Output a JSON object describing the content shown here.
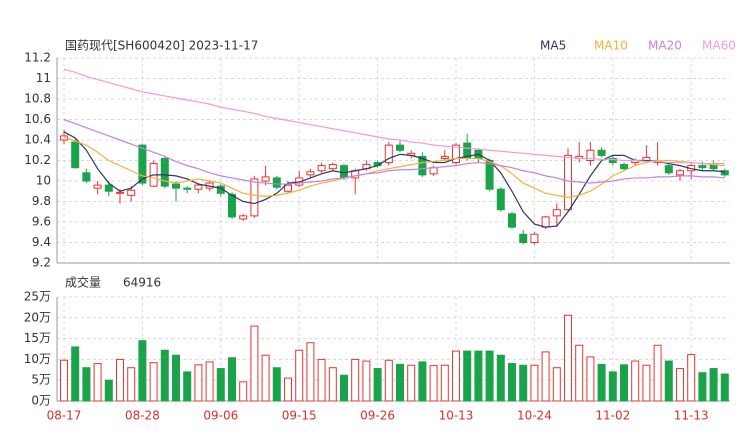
{
  "chart_data": [
    {
      "type": "candlestick",
      "title": "国药现代[SH600420] 2023-11-17",
      "up_color": "#e8352e",
      "down_color": "#1aa34a",
      "open": [
        10.4,
        10.38,
        10.08,
        9.93,
        9.96,
        9.88,
        9.86,
        10.35,
        9.95,
        10.22,
        9.97,
        9.93,
        9.92,
        9.93,
        9.95,
        9.87,
        9.63,
        9.66,
        10.0,
        10.03,
        9.9,
        9.96,
        10.06,
        10.1,
        10.12,
        10.15,
        10.03,
        10.12,
        10.18,
        10.18,
        10.35,
        10.25,
        10.24,
        10.07,
        10.22,
        10.18,
        10.37,
        10.3,
        10.2,
        9.92,
        9.68,
        9.48,
        9.4,
        9.55,
        9.66,
        9.72,
        10.22,
        10.2,
        10.3,
        10.22,
        10.16,
        10.18,
        10.2,
        10.18,
        10.15,
        10.06,
        10.1,
        10.15,
        10.16,
        10.1
      ],
      "high": [
        10.5,
        10.42,
        10.12,
        10.0,
        10.0,
        9.92,
        9.95,
        10.36,
        10.2,
        10.24,
        10.0,
        9.95,
        9.98,
        10.0,
        9.97,
        9.89,
        9.68,
        10.05,
        10.15,
        10.05,
        10.0,
        10.1,
        10.12,
        10.18,
        10.18,
        10.17,
        10.12,
        10.2,
        10.2,
        10.38,
        10.4,
        10.3,
        10.28,
        10.15,
        10.3,
        10.37,
        10.46,
        10.32,
        10.22,
        9.94,
        9.7,
        9.52,
        9.5,
        9.66,
        9.78,
        10.32,
        10.38,
        10.38,
        10.33,
        10.25,
        10.18,
        10.22,
        10.35,
        10.38,
        10.17,
        10.12,
        10.17,
        10.19,
        10.2,
        10.12
      ],
      "low": [
        10.36,
        10.12,
        9.98,
        9.87,
        9.85,
        9.78,
        9.8,
        9.96,
        9.94,
        9.93,
        9.8,
        9.88,
        9.88,
        9.9,
        9.85,
        9.63,
        9.61,
        9.64,
        9.96,
        9.92,
        9.88,
        9.94,
        10.03,
        10.08,
        10.1,
        10.01,
        9.87,
        10.1,
        10.13,
        10.15,
        10.28,
        10.22,
        10.04,
        10.05,
        10.2,
        10.16,
        10.2,
        10.18,
        9.9,
        9.7,
        9.53,
        9.38,
        9.38,
        9.53,
        9.55,
        9.7,
        10.18,
        10.15,
        10.23,
        10.15,
        10.1,
        10.15,
        10.18,
        10.15,
        10.06,
        10.0,
        10.02,
        10.1,
        10.1,
        10.04
      ],
      "close": [
        10.44,
        10.13,
        10.0,
        9.96,
        9.9,
        9.89,
        9.91,
        9.98,
        10.17,
        9.95,
        9.93,
        9.92,
        9.96,
        9.98,
        9.88,
        9.65,
        9.66,
        10.02,
        10.04,
        9.94,
        9.96,
        10.03,
        10.09,
        10.15,
        10.16,
        10.03,
        10.1,
        10.16,
        10.15,
        10.35,
        10.3,
        10.27,
        10.06,
        10.13,
        10.24,
        10.35,
        10.22,
        10.22,
        9.92,
        9.72,
        9.55,
        9.4,
        9.48,
        9.65,
        9.72,
        10.25,
        10.24,
        10.3,
        10.25,
        10.18,
        10.12,
        10.2,
        10.23,
        10.2,
        10.08,
        10.1,
        10.15,
        10.13,
        10.12,
        10.06
      ],
      "series": [
        {
          "name": "MA5",
          "color": "#2f3566",
          "values": [
            10.48,
            10.42,
            10.3,
            10.12,
            9.98,
            9.9,
            9.93,
            10.02,
            10.06,
            10.06,
            10.05,
            10.02,
            9.97,
            9.95,
            9.93,
            9.86,
            9.8,
            9.78,
            9.82,
            9.88,
            9.98,
            9.99,
            10.03,
            10.07,
            10.1,
            10.08,
            10.1,
            10.12,
            10.15,
            10.22,
            10.26,
            10.25,
            10.22,
            10.18,
            10.18,
            10.22,
            10.24,
            10.26,
            10.2,
            10.08,
            9.9,
            9.7,
            9.58,
            9.55,
            9.56,
            9.7,
            9.87,
            10.05,
            10.2,
            10.25,
            10.25,
            10.2,
            10.2,
            10.19,
            10.17,
            10.15,
            10.12,
            10.1,
            10.1,
            10.09
          ]
        },
        {
          "name": "MA10",
          "color": "#f2b13c",
          "values": [
            10.43,
            10.39,
            10.35,
            10.28,
            10.2,
            10.15,
            10.1,
            10.05,
            10.03,
            10.0,
            9.98,
            10.0,
            10.02,
            10.0,
            9.98,
            9.93,
            9.88,
            9.86,
            9.85,
            9.86,
            9.88,
            9.91,
            9.95,
            9.98,
            10.0,
            10.03,
            10.05,
            10.07,
            10.1,
            10.12,
            10.14,
            10.16,
            10.18,
            10.19,
            10.2,
            10.22,
            10.22,
            10.22,
            10.19,
            10.15,
            10.07,
            9.98,
            9.93,
            9.88,
            9.86,
            9.84,
            9.86,
            9.9,
            9.97,
            10.05,
            10.1,
            10.15,
            10.18,
            10.2,
            10.2,
            10.19,
            10.18,
            10.17,
            10.16,
            10.15
          ]
        },
        {
          "name": "MA20",
          "color": "#c283e0",
          "values": [
            10.6,
            10.56,
            10.52,
            10.48,
            10.44,
            10.4,
            10.36,
            10.32,
            10.28,
            10.24,
            10.19,
            10.15,
            10.12,
            10.08,
            10.05,
            10.03,
            10.01,
            9.99,
            9.98,
            9.97,
            9.97,
            9.98,
            9.99,
            10.0,
            10.02,
            10.03,
            10.05,
            10.07,
            10.08,
            10.1,
            10.11,
            10.11,
            10.12,
            10.13,
            10.14,
            10.15,
            10.17,
            10.18,
            10.17,
            10.15,
            10.13,
            10.1,
            10.08,
            10.05,
            10.03,
            10.0,
            9.99,
            9.98,
            9.99,
            10.0,
            10.02,
            10.03,
            10.03,
            10.04,
            10.04,
            10.05,
            10.05,
            10.04,
            10.04,
            10.03
          ]
        },
        {
          "name": "MA60",
          "color": "#f29ad8",
          "values": [
            11.09,
            11.06,
            11.02,
            10.99,
            10.96,
            10.93,
            10.9,
            10.87,
            10.85,
            10.83,
            10.81,
            10.79,
            10.77,
            10.75,
            10.72,
            10.7,
            10.68,
            10.66,
            10.63,
            10.61,
            10.59,
            10.57,
            10.55,
            10.53,
            10.51,
            10.49,
            10.47,
            10.45,
            10.43,
            10.41,
            10.4,
            10.38,
            10.37,
            10.35,
            10.34,
            10.33,
            10.32,
            10.31,
            10.3,
            10.29,
            10.28,
            10.27,
            10.26,
            10.25,
            10.24,
            10.23,
            10.22,
            10.22,
            10.21,
            10.21,
            10.2,
            10.2,
            10.19,
            10.19,
            10.18,
            10.18,
            10.18,
            10.17,
            10.17,
            10.17
          ]
        }
      ],
      "ylim": [
        9.2,
        11.2
      ],
      "yticks": [
        9.2,
        9.4,
        9.6,
        9.8,
        10,
        10.2,
        10.4,
        10.6,
        10.8,
        11,
        11.2
      ],
      "grid": true
    },
    {
      "type": "bar",
      "label": "成交量",
      "last_value": 64916,
      "categories": [
        "08-17",
        null,
        null,
        null,
        null,
        null,
        null,
        "08-28",
        null,
        null,
        null,
        null,
        null,
        null,
        "09-06",
        null,
        null,
        null,
        null,
        null,
        null,
        "09-15",
        null,
        null,
        null,
        null,
        null,
        null,
        "09-26",
        null,
        null,
        null,
        null,
        null,
        null,
        "10-13",
        null,
        null,
        null,
        null,
        null,
        null,
        "10-24",
        null,
        null,
        null,
        null,
        null,
        null,
        "11-02",
        null,
        null,
        null,
        null,
        null,
        null,
        "11-13",
        null,
        null,
        null
      ],
      "values": [
        98000,
        130000,
        80000,
        90000,
        50000,
        100000,
        80000,
        145000,
        92000,
        122000,
        110000,
        70000,
        87000,
        94000,
        78000,
        104000,
        46000,
        180000,
        110000,
        80000,
        55000,
        122000,
        140000,
        100000,
        80000,
        62000,
        100000,
        96000,
        78000,
        98000,
        88000,
        86000,
        94000,
        85000,
        86000,
        120000,
        120000,
        120000,
        120000,
        110000,
        90000,
        86000,
        86000,
        118000,
        80000,
        206000,
        134000,
        106000,
        88000,
        70000,
        87000,
        96000,
        86000,
        134000,
        96000,
        78000,
        112000,
        68000,
        78000,
        64916
      ],
      "ylim": [
        0,
        250000
      ],
      "yticks": [
        {
          "value": 0,
          "label": "0万"
        },
        {
          "value": 50000,
          "label": "5万"
        },
        {
          "value": 100000,
          "label": "10万"
        },
        {
          "value": 150000,
          "label": "15万"
        },
        {
          "value": 200000,
          "label": "20万"
        },
        {
          "value": 250000,
          "label": "25万"
        }
      ],
      "grid": true
    }
  ]
}
